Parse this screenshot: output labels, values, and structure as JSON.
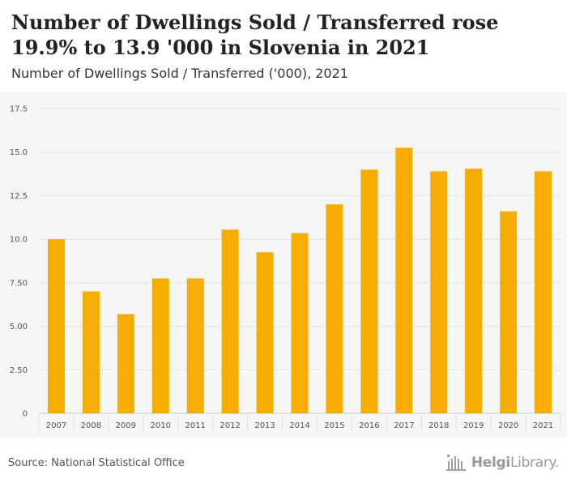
{
  "header": {
    "title": "Number of Dwellings Sold / Transferred rose 19.9% to 13.9 '000 in Slovenia in 2021",
    "subtitle": "Number of Dwellings Sold / Transferred ('000), 2021"
  },
  "footer": {
    "source": "Source: National Statistical Office",
    "logo_bold": "Helgi",
    "logo_light": "Library."
  },
  "chart_data": {
    "type": "bar",
    "categories": [
      "2007",
      "2008",
      "2009",
      "2010",
      "2011",
      "2012",
      "2013",
      "2014",
      "2015",
      "2016",
      "2017",
      "2018",
      "2019",
      "2020",
      "2021"
    ],
    "values": [
      10.0,
      7.0,
      5.7,
      7.75,
      7.75,
      10.55,
      9.25,
      10.35,
      12.0,
      14.0,
      15.25,
      13.9,
      14.05,
      11.6,
      13.9
    ],
    "ylim": [
      0,
      17.5
    ],
    "yticks": [
      "0",
      "2.50",
      "5.00",
      "7.50",
      "10.0",
      "12.5",
      "15.0",
      "17.5"
    ],
    "ytick_values": [
      0,
      2.5,
      5,
      7.5,
      10,
      12.5,
      15,
      17.5
    ],
    "grid": true,
    "bar_color": "#f7ac00"
  }
}
